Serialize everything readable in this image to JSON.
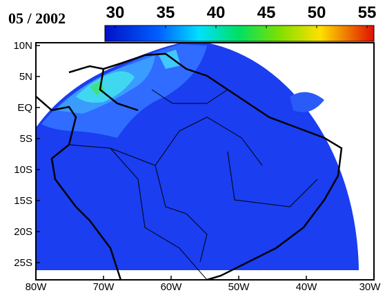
{
  "header": {
    "title": "05 / 2002"
  },
  "colorbar": {
    "lim": [
      30,
      55
    ],
    "ticks": [
      30,
      35,
      40,
      45,
      50,
      55
    ]
  },
  "map": {
    "lat_labels": [
      "10N",
      "5N",
      "EQ",
      "5S",
      "10S",
      "15S",
      "20S",
      "25S"
    ],
    "lon_labels": [
      "80W",
      "70W",
      "60W",
      "50W",
      "40W",
      "30W"
    ]
  }
}
